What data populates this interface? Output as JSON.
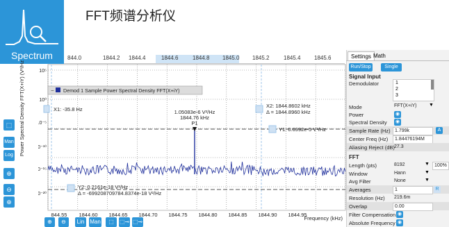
{
  "app": {
    "title": "FFT频谱分析仪",
    "brand_label": "Spectrum"
  },
  "plot": {
    "ylabel": "Power Spectral Density FFT(X+iY) (V²/Hz",
    "xlabel": "Frequency (kHz)",
    "legend": "Demod 1 Sample Power Spectral Density FFT(X+iY)",
    "top_ticks": [
      "844.0",
      "1844.2",
      "1844.4",
      "1844.6",
      "1844.8",
      "1845.0",
      "1845.2",
      "1845.4",
      "1845.6"
    ],
    "x_ticks": [
      "844.55",
      "1844.60",
      "1844.65",
      "1844.70",
      "1844.75",
      "1844.80",
      "1844.85",
      "1844.90",
      "1844.95"
    ],
    "y_ticks": [
      "10⁵",
      "10⁰",
      "10⁻⁵",
      "10⁻¹⁰",
      "10⁻¹⁵",
      "10⁻²⁰"
    ],
    "cursor_x1": "X1: -35.8 Hz",
    "cursor_x2": "X2: 1844.8602 kHz",
    "cursor_x2_delta": "Δ = 1844.8960 kHz",
    "cursor_y1": "Y1: 0.6992e-5 V²/Hz",
    "cursor_y2": "Y2: 0.2161e-18 V²/Hz",
    "cursor_y2_delta": "Δ = -699208709784.8374e-18 V²/Hz",
    "peak_value": "1.05083e-6 V²/Hz",
    "peak_freq": "1844.76 kHz",
    "peak_label": "P1"
  },
  "toolbar": {
    "left": [
      "⬚",
      "Man",
      "Log",
      "⊕",
      "⊖",
      "⊕"
    ],
    "bottom": [
      "⊕",
      "⊖",
      "Lin",
      "Man",
      "⬚",
      "⬚⊸",
      "⬚⊸"
    ]
  },
  "panel": {
    "tabs": [
      "Settings",
      "Math"
    ],
    "run_stop": "Run/Stop",
    "single": "Single",
    "signal_input": "Signal Input",
    "demodulator_label": "Demodulator",
    "demodulator_options": [
      "1",
      "2",
      "3"
    ],
    "mode_label": "Mode",
    "mode_value": "FFT(X+iY)",
    "power_label": "Power",
    "spectral_density_label": "Spectral Density",
    "sample_rate_label": "Sample Rate (Hz)",
    "sample_rate_value": "1.799k",
    "sample_rate_btn": "A",
    "center_freq_label": "Center Freq (Hz)",
    "center_freq_value": "1.84476194M",
    "aliasing_label": "Aliasing Reject (dB)",
    "aliasing_value": "27.3",
    "fft_section": "FFT",
    "length_label": "Length (pts)",
    "length_value": "8192",
    "length_pct": "100%",
    "window_label": "Window",
    "window_value": "Hann",
    "avg_filter_label": "Avg Filter",
    "avg_filter_value": "None",
    "averages_label": "Averages",
    "averages_value": "1",
    "averages_btn": "R",
    "resolution_label": "Resolution (Hz)",
    "resolution_value": "219.6m",
    "overlap_label": "Overlap",
    "overlap_value": "0.00",
    "filter_comp_label": "Filter Compensation",
    "abs_freq_label": "Absolute Frequency"
  },
  "colors": {
    "accent": "#2c95d8",
    "trace": "#1f2f9c",
    "cursor": "#9fc6ea"
  }
}
